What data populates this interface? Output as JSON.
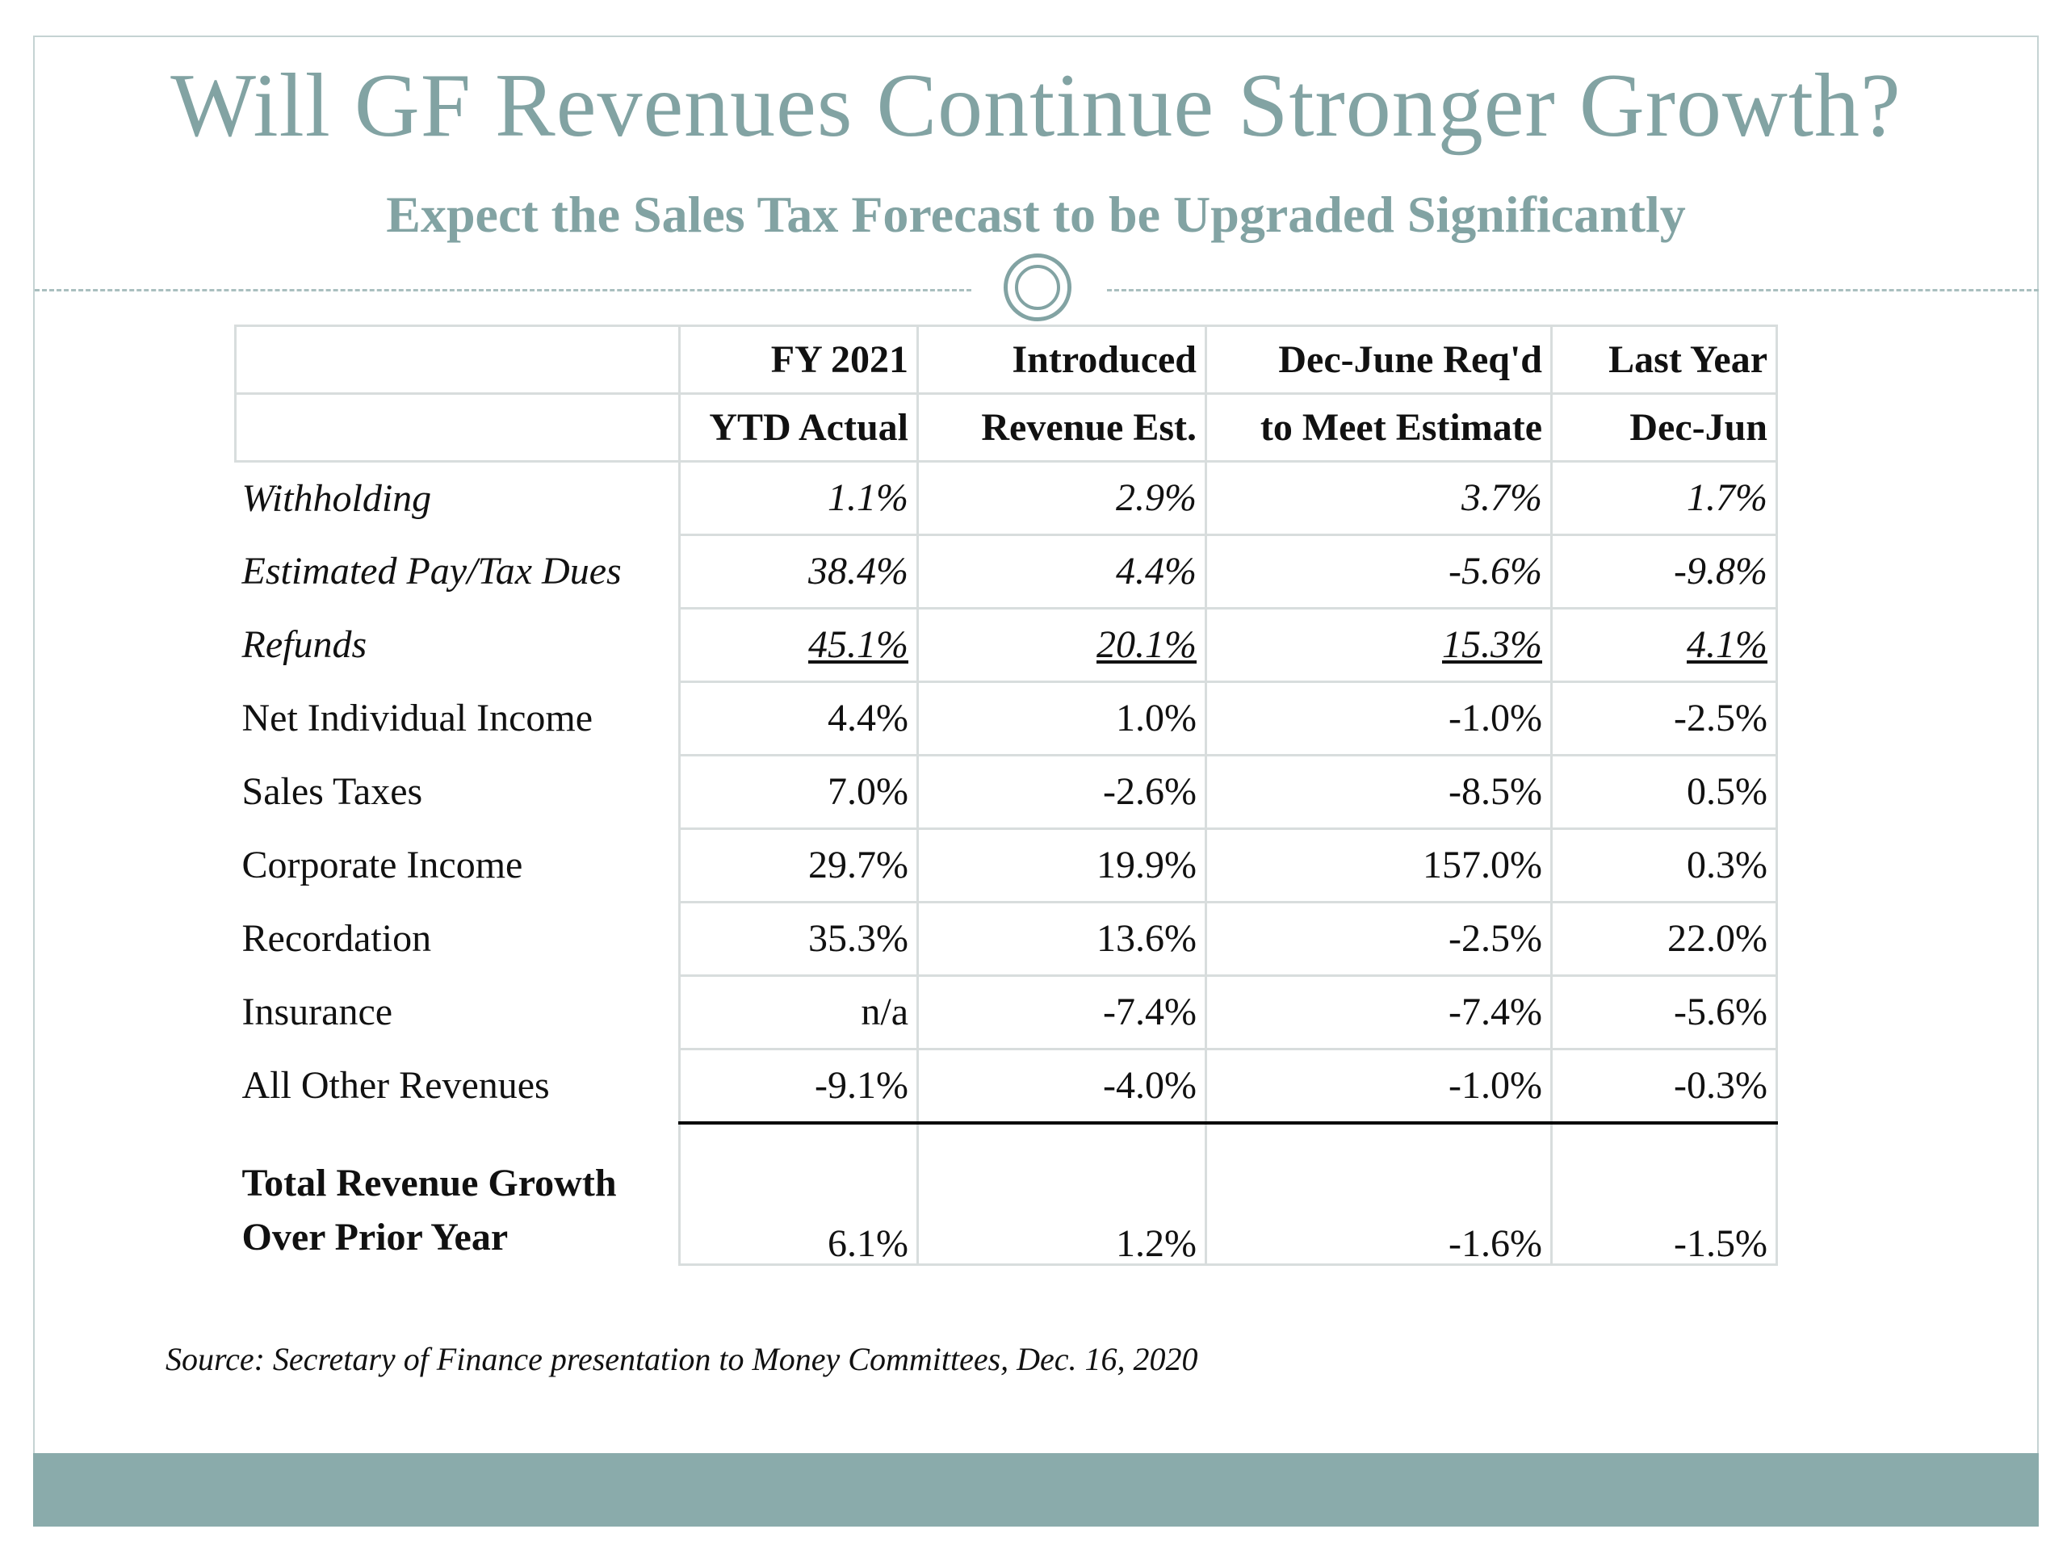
{
  "slide": {
    "title": "Will GF Revenues Continue Stronger Growth?",
    "subtitle": "Expect the Sales Tax Forecast to be Upgraded Significantly",
    "source": "Source: Secretary of Finance presentation to Money Committees, Dec. 16, 2020"
  },
  "table": {
    "headers_line1": [
      "FY 2021",
      "Introduced",
      "Dec-June Req'd",
      "Last Year"
    ],
    "headers_line2": [
      "YTD Actual",
      "Revenue Est.",
      "to Meet Estimate",
      "Dec-Jun"
    ],
    "rows": [
      {
        "label": "Withholding",
        "values": [
          "1.1%",
          "2.9%",
          "3.7%",
          "1.7%"
        ]
      },
      {
        "label": "Estimated Pay/Tax Dues",
        "values": [
          "38.4%",
          "4.4%",
          "-5.6%",
          "-9.8%"
        ]
      },
      {
        "label": "Refunds",
        "values": [
          "45.1%",
          "20.1%",
          "15.3%",
          "4.1%"
        ]
      },
      {
        "label": "Net Individual Income",
        "values": [
          "4.4%",
          "1.0%",
          "-1.0%",
          "-2.5%"
        ]
      },
      {
        "label": "Sales Taxes",
        "values": [
          "7.0%",
          "-2.6%",
          "-8.5%",
          "0.5%"
        ]
      },
      {
        "label": "Corporate Income",
        "values": [
          "29.7%",
          "19.9%",
          "157.0%",
          "0.3%"
        ]
      },
      {
        "label": "Recordation",
        "values": [
          "35.3%",
          "13.6%",
          "-2.5%",
          "22.0%"
        ]
      },
      {
        "label": "Insurance",
        "values": [
          "n/a",
          "-7.4%",
          "-7.4%",
          "-5.6%"
        ]
      },
      {
        "label": "All Other Revenues",
        "values": [
          "-9.1%",
          "-4.0%",
          "-1.0%",
          "-0.3%"
        ]
      }
    ],
    "total": {
      "label_line1": "Total Revenue Growth",
      "label_line2": "Over Prior Year",
      "values": [
        "6.1%",
        "1.2%",
        "-1.6%",
        "-1.5%"
      ]
    }
  },
  "colors": {
    "accent": "#82a3a3",
    "footer_band": "#8aabab"
  }
}
